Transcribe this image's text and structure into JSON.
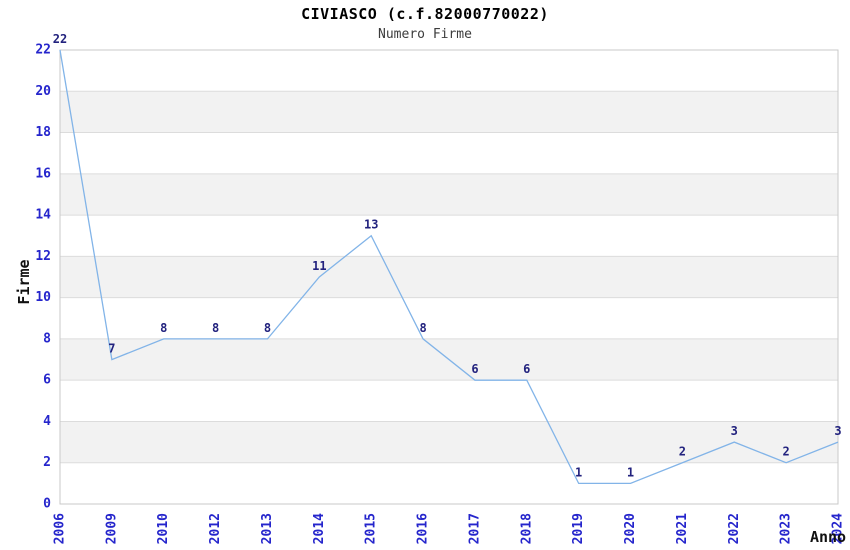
{
  "header": {
    "title": "CIVIASCO (c.f.82000770022)",
    "subtitle": "Numero Firme"
  },
  "axes": {
    "y_title": "Firme",
    "x_title": "Anno"
  },
  "chart_data": {
    "type": "line",
    "title": "CIVIASCO (c.f.82000770022)",
    "subtitle": "Numero Firme",
    "xlabel": "Anno",
    "ylabel": "Firme",
    "categories": [
      "2006",
      "2009",
      "2010",
      "2012",
      "2013",
      "2014",
      "2015",
      "2016",
      "2017",
      "2018",
      "2019",
      "2020",
      "2021",
      "2022",
      "2023",
      "2024"
    ],
    "values": [
      22,
      7,
      8,
      8,
      8,
      11,
      13,
      8,
      6,
      6,
      1,
      1,
      2,
      3,
      2,
      3
    ],
    "ylim": [
      0,
      22
    ],
    "ytick_step": 2,
    "grid": "horizontal",
    "legend": "none",
    "data_labels": true,
    "colors": {
      "line": "#82b4e8",
      "tick_label": "#2525cc",
      "data_label": "#22227e",
      "band_gray": "#f2f2f2",
      "band_white": "#ffffff",
      "grid_line": "#dcdcdc",
      "plot_border": "#c9c9c9",
      "title": "#000000",
      "subtitle": "#3c3c3c"
    }
  }
}
